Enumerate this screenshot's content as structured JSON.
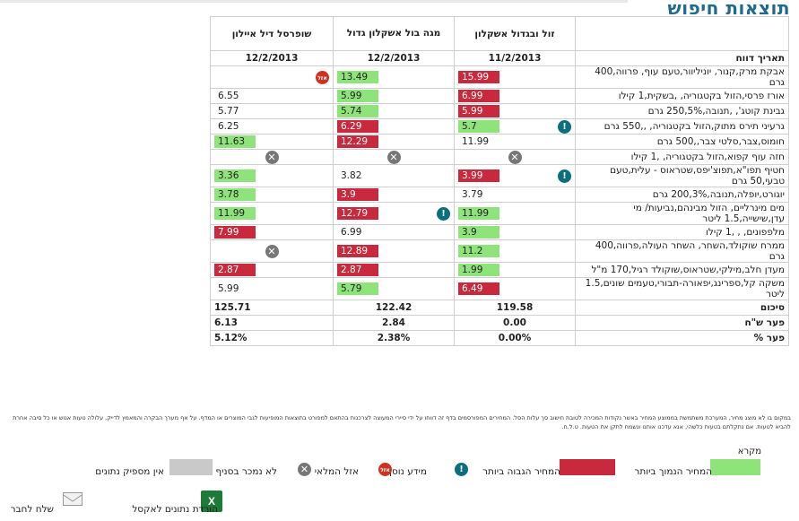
{
  "title": "תוצאות חיפוש",
  "table": {
    "headers": [
      "",
      "זול ובגדול אשקלון",
      "מגה בול אשקלון גדול",
      "שופרסל דיל איילון"
    ],
    "date_label": "תאריך דווח",
    "dates": [
      "11/2/2013",
      "12/2/2013",
      "12/2/2013"
    ],
    "rows": [
      {
        "name": "אבקת מרק,קנור, יוניליוור,טעם עוף, פרווה,400 גרם",
        "cells": [
          {
            "v": "15.99",
            "s": "high"
          },
          {
            "v": "13.49",
            "s": "low"
          },
          {
            "v": "",
            "s": "oos"
          }
        ]
      },
      {
        "name": "אורז פרסי,הזול בקטגוריה, ,בשקית,1 קילו",
        "cells": [
          {
            "v": "6.99",
            "s": "high"
          },
          {
            "v": "5.99",
            "s": "low"
          },
          {
            "v": "6.55",
            "s": "plain"
          }
        ]
      },
      {
        "name": "גבינת קוטג', ,תנובה,250,5% גרם",
        "cells": [
          {
            "v": "5.99",
            "s": "high"
          },
          {
            "v": "5.74",
            "s": "low"
          },
          {
            "v": "5.77",
            "s": "plain"
          }
        ]
      },
      {
        "name": "גרעיני תירס מתוק,הזול בקטגוריה, ,,550 גרם",
        "cells": [
          {
            "v": "5.7",
            "s": "low",
            "info": true
          },
          {
            "v": "6.29",
            "s": "high"
          },
          {
            "v": "6.25",
            "s": "plain"
          }
        ]
      },
      {
        "name": "חומוס,צבר,סלטי צבר,,500 גרם",
        "cells": [
          {
            "v": "11.99",
            "s": "plain"
          },
          {
            "v": "12.29",
            "s": "high"
          },
          {
            "v": "11.63",
            "s": "low"
          }
        ]
      },
      {
        "name": "חזה עוף קפוא,הזול בקטגוריה, ,1 קילו",
        "cells": [
          {
            "v": "",
            "s": "x"
          },
          {
            "v": "",
            "s": "x"
          },
          {
            "v": "",
            "s": "x"
          }
        ]
      },
      {
        "name": "חטיף תפו\"א,תפוצ'יפס,שטראוס - עלית,טעם טבעי,50 גרם",
        "cells": [
          {
            "v": "3.99",
            "s": "high",
            "info": true
          },
          {
            "v": "3.82",
            "s": "plain"
          },
          {
            "v": "3.36",
            "s": "low"
          }
        ]
      },
      {
        "name": "יוגורט,יופלה,תנובה,200,3% גרם",
        "cells": [
          {
            "v": "3.79",
            "s": "plain"
          },
          {
            "v": "3.9",
            "s": "high"
          },
          {
            "v": "3.78",
            "s": "low"
          }
        ]
      },
      {
        "name": "מים מינרליים, הזול מבינהם,נביעות/ מי עדן,שישייה,1.5 ליטר",
        "cells": [
          {
            "v": "11.99",
            "s": "low"
          },
          {
            "v": "12.79",
            "s": "high",
            "info": true
          },
          {
            "v": "11.99",
            "s": "low"
          }
        ]
      },
      {
        "name": "מלפפונים, , ,1 קילו",
        "cells": [
          {
            "v": "3.9",
            "s": "low"
          },
          {
            "v": "6.99",
            "s": "plain"
          },
          {
            "v": "7.99",
            "s": "high"
          }
        ]
      },
      {
        "name": "ממרח שוקולד,השחר, השחר העולה,פרווה,400 גרם",
        "cells": [
          {
            "v": "11.2",
            "s": "low"
          },
          {
            "v": "12.89",
            "s": "high"
          },
          {
            "v": "",
            "s": "x"
          }
        ]
      },
      {
        "name": "מעדן חלב,מילקי,שטראוס,שוקולד רגיל,170 מ\"ל",
        "cells": [
          {
            "v": "1.99",
            "s": "low"
          },
          {
            "v": "2.87",
            "s": "high"
          },
          {
            "v": "2.87",
            "s": "high"
          }
        ]
      },
      {
        "name": "משקה קל,ספרינג,יפאורה-תבורי,טעמים שונים,1.5 ליטר",
        "cells": [
          {
            "v": "6.49",
            "s": "high"
          },
          {
            "v": "5.79",
            "s": "low"
          },
          {
            "v": "5.99",
            "s": "plain"
          }
        ]
      }
    ],
    "totals": [
      {
        "label": "סיכום",
        "values": [
          "119.58",
          "122.42",
          "125.71"
        ]
      },
      {
        "label": "פער ש\"ח",
        "values": [
          "0.00",
          "2.84",
          "6.13"
        ]
      },
      {
        "label": "פער %",
        "values": [
          "0.00%",
          "2.38%",
          "5.12%"
        ]
      }
    ]
  },
  "note": "במקום בו לא מוצג מחיר, המערכת משתמשת בממוצע המחיר באשר נקודות המכירה לטובת חישוב סך עלות הסל. המחירים המפורסמים בדף זה דווחו על ידי סיירי המעוצה לצרכנות בהתאם למפורט בתוצאות המופיעות לגבי המוצרים או המדף. על אף מערך הבקרה והמאמץ לדייק, עלולה טעות אנוש או כל סיבה אחרת להביא לטעות. אם נתקלתם בטעות כלשהי, אנא עדכנו אותנו ונשמח לתקן את הטעות. ט.ל.ח.",
  "legend": {
    "title": "מקרא",
    "cheapest": "המחיר הנמוך ביותר",
    "highest": "המחיר הגבוה ביותר",
    "info": "מידע נוסף",
    "out_of_stock": "אזל המלאי",
    "not_sold": "לא נמכר בסניף",
    "no_data": "אין מספיק נתונים",
    "oos_icon_text": "אזל"
  },
  "footer": {
    "excel": "הורדת נתונים לאקסל",
    "send": "שלח לחבר"
  },
  "colors": {
    "low": "#8ee37a",
    "high": "#c8293c",
    "title": "#1f6b8f"
  }
}
